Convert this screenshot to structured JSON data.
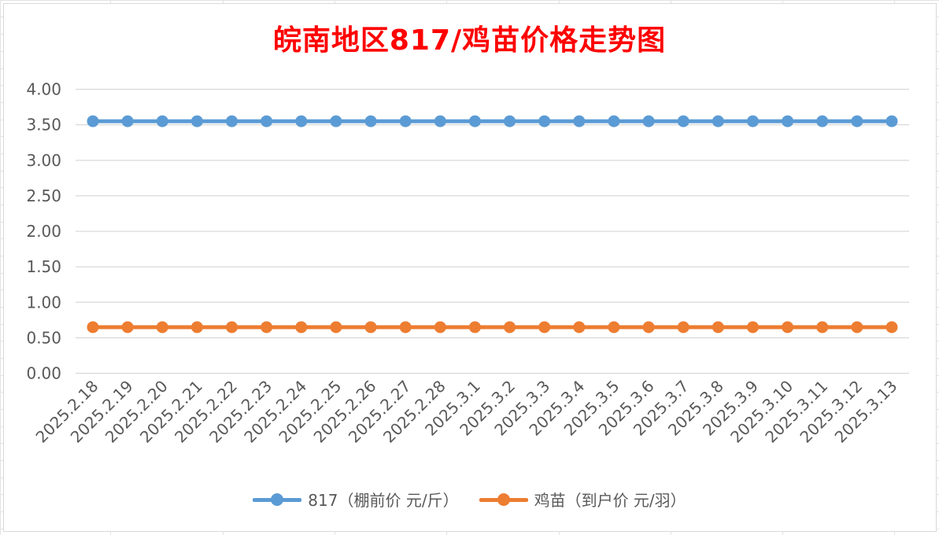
{
  "chart_data": {
    "type": "line",
    "title": "皖南地区817/鸡苗价格走势图",
    "title_color": "#ff0000",
    "xlabel": "",
    "ylabel": "",
    "categories": [
      "2025.2.18",
      "2025.2.19",
      "2025.2.20",
      "2025.2.21",
      "2025.2.22",
      "2025.2.23",
      "2025.2.24",
      "2025.2.25",
      "2025.2.26",
      "2025.2.27",
      "2025.2.28",
      "2025.3.1",
      "2025.3.2",
      "2025.3.3",
      "2025.3.4",
      "2025.3.5",
      "2025.3.6",
      "2025.3.7",
      "2025.3.8",
      "2025.3.9",
      "2025.3.10",
      "2025.3.11",
      "2025.3.12",
      "2025.3.13"
    ],
    "y_ticks": [
      "0.00",
      "0.50",
      "1.00",
      "1.50",
      "2.00",
      "2.50",
      "3.00",
      "3.50",
      "4.00"
    ],
    "ylim": [
      0,
      4
    ],
    "grid": true,
    "legend_position": "bottom",
    "series": [
      {
        "name": "817（棚前价 元/斤）",
        "color": "#5b9bd5",
        "values": [
          3.55,
          3.55,
          3.55,
          3.55,
          3.55,
          3.55,
          3.55,
          3.55,
          3.55,
          3.55,
          3.55,
          3.55,
          3.55,
          3.55,
          3.55,
          3.55,
          3.55,
          3.55,
          3.55,
          3.55,
          3.55,
          3.55,
          3.55,
          3.55
        ]
      },
      {
        "name": "鸡苗（到户价 元/羽）",
        "color": "#ed7d31",
        "values": [
          0.65,
          0.65,
          0.65,
          0.65,
          0.65,
          0.65,
          0.65,
          0.65,
          0.65,
          0.65,
          0.65,
          0.65,
          0.65,
          0.65,
          0.65,
          0.65,
          0.65,
          0.65,
          0.65,
          0.65,
          0.65,
          0.65,
          0.65,
          0.65
        ]
      }
    ]
  }
}
